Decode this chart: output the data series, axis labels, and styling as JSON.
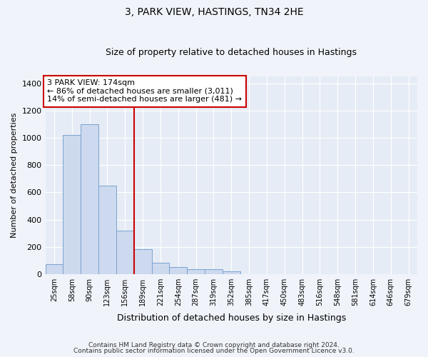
{
  "title": "3, PARK VIEW, HASTINGS, TN34 2HE",
  "subtitle": "Size of property relative to detached houses in Hastings",
  "xlabel": "Distribution of detached houses by size in Hastings",
  "ylabel": "Number of detached properties",
  "footnote1": "Contains HM Land Registry data © Crown copyright and database right 2024.",
  "footnote2": "Contains public sector information licensed under the Open Government Licence v3.0.",
  "bar_labels": [
    "25sqm",
    "58sqm",
    "90sqm",
    "123sqm",
    "156sqm",
    "189sqm",
    "221sqm",
    "254sqm",
    "287sqm",
    "319sqm",
    "352sqm",
    "385sqm",
    "417sqm",
    "450sqm",
    "483sqm",
    "516sqm",
    "548sqm",
    "581sqm",
    "614sqm",
    "646sqm",
    "679sqm"
  ],
  "bar_values": [
    75,
    1020,
    1100,
    650,
    320,
    185,
    85,
    55,
    40,
    35,
    20,
    0,
    0,
    0,
    0,
    0,
    0,
    0,
    0,
    0,
    0
  ],
  "bar_color": "#ccd9ee",
  "bar_edge_color": "#7ba3d0",
  "ylim": [
    0,
    1450
  ],
  "yticks": [
    0,
    200,
    400,
    600,
    800,
    1000,
    1200,
    1400
  ],
  "vline_x": 4.5,
  "vline_color": "#cc0000",
  "annotation_text": "3 PARK VIEW: 174sqm\n← 86% of detached houses are smaller (3,011)\n14% of semi-detached houses are larger (481) →",
  "annotation_box_color": "#ffffff",
  "annotation_box_edge_color": "#cc0000",
  "fig_bg_color": "#f0f4fa",
  "ax_bg_color": "#e6ecf5",
  "grid_color": "#ffffff",
  "title_fontsize": 10,
  "subtitle_fontsize": 9
}
